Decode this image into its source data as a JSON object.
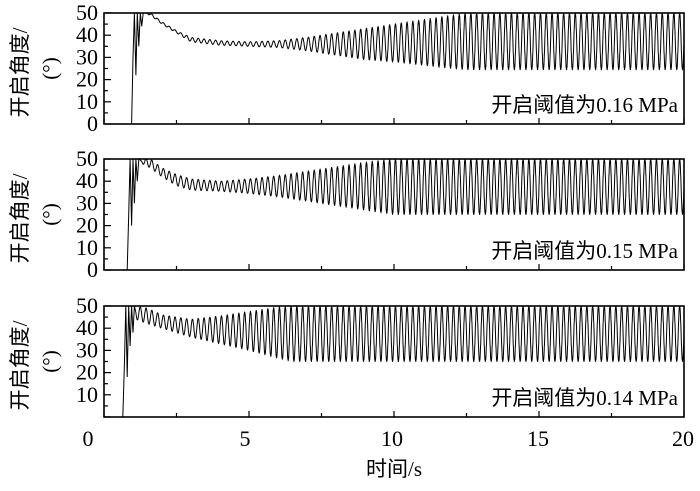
{
  "chart_data": [
    {
      "type": "line",
      "annotation": "开启阈值为0.16 MPa",
      "ylabel": "开启角度/",
      "ylabel_unit": "(°)",
      "yticks": [
        "0",
        "10",
        "20",
        "30",
        "40",
        "50"
      ],
      "ylim": [
        0,
        50
      ],
      "xlim": [
        0,
        20
      ],
      "transient": [
        [
          0.95,
          0
        ],
        [
          1.0,
          30
        ],
        [
          1.05,
          50
        ],
        [
          1.1,
          22
        ],
        [
          1.15,
          50
        ],
        [
          1.2,
          35
        ],
        [
          1.25,
          50
        ],
        [
          1.3,
          44
        ],
        [
          1.35,
          50
        ]
      ],
      "envelope": {
        "t": [
          1.4,
          1.6,
          2,
          2.5,
          3,
          4,
          5,
          6,
          7,
          8,
          9,
          10,
          11,
          12,
          12.5,
          20
        ],
        "upper": [
          50,
          50,
          46,
          42,
          39,
          37.5,
          37,
          37.5,
          39,
          41,
          43,
          45,
          47,
          49,
          50,
          50
        ],
        "lower": [
          50,
          49,
          45,
          41,
          37,
          35.5,
          35,
          34.5,
          33,
          31,
          29,
          28,
          26.5,
          25,
          24.5,
          24.5
        ]
      }
    },
    {
      "type": "line",
      "annotation": "开启阈值为0.15 MPa",
      "ylabel": "开启角度/",
      "ylabel_unit": "(°)",
      "yticks": [
        "0",
        "10",
        "20",
        "30",
        "40",
        "50"
      ],
      "ylim": [
        0,
        50
      ],
      "xlim": [
        0,
        20
      ],
      "transient": [
        [
          0.8,
          0
        ],
        [
          0.85,
          25
        ],
        [
          0.9,
          50
        ],
        [
          0.95,
          20
        ],
        [
          1.0,
          50
        ],
        [
          1.05,
          30
        ],
        [
          1.1,
          50
        ],
        [
          1.15,
          40
        ],
        [
          1.2,
          50
        ]
      ],
      "envelope": {
        "t": [
          1.3,
          1.6,
          2,
          2.5,
          3,
          4,
          5,
          6,
          7,
          8,
          9,
          10,
          20
        ],
        "upper": [
          50,
          50,
          46,
          43,
          41,
          40,
          41,
          42.5,
          44.5,
          46.5,
          48.5,
          50,
          50
        ],
        "lower": [
          48,
          46,
          42,
          38,
          36,
          35.5,
          34.5,
          33,
          31,
          29,
          27,
          25,
          25
        ]
      }
    },
    {
      "type": "line",
      "annotation": "开启阈值为0.14 MPa",
      "ylabel": "开启角度/",
      "ylabel_unit": "(°)",
      "yticks": [
        "10",
        "20",
        "30",
        "40",
        "50"
      ],
      "ylim": [
        0,
        50
      ],
      "xlim": [
        0,
        20
      ],
      "transient": [
        [
          0.65,
          0
        ],
        [
          0.7,
          22
        ],
        [
          0.75,
          50
        ],
        [
          0.8,
          18
        ],
        [
          0.85,
          50
        ],
        [
          0.9,
          32
        ],
        [
          0.95,
          50
        ],
        [
          1.0,
          38
        ],
        [
          1.05,
          50
        ]
      ],
      "envelope": {
        "t": [
          1.1,
          1.5,
          2,
          3,
          4,
          5,
          6,
          6.5,
          20
        ],
        "upper": [
          50,
          49,
          46,
          44,
          45.5,
          47.5,
          49.5,
          50,
          50
        ],
        "lower": [
          44,
          42,
          40,
          36,
          33,
          30,
          26.5,
          25,
          25
        ]
      }
    }
  ],
  "xaxis": {
    "label": "时间/s",
    "ticks": [
      "0",
      "5",
      "10",
      "15",
      "20"
    ]
  },
  "freq_hz": 5
}
